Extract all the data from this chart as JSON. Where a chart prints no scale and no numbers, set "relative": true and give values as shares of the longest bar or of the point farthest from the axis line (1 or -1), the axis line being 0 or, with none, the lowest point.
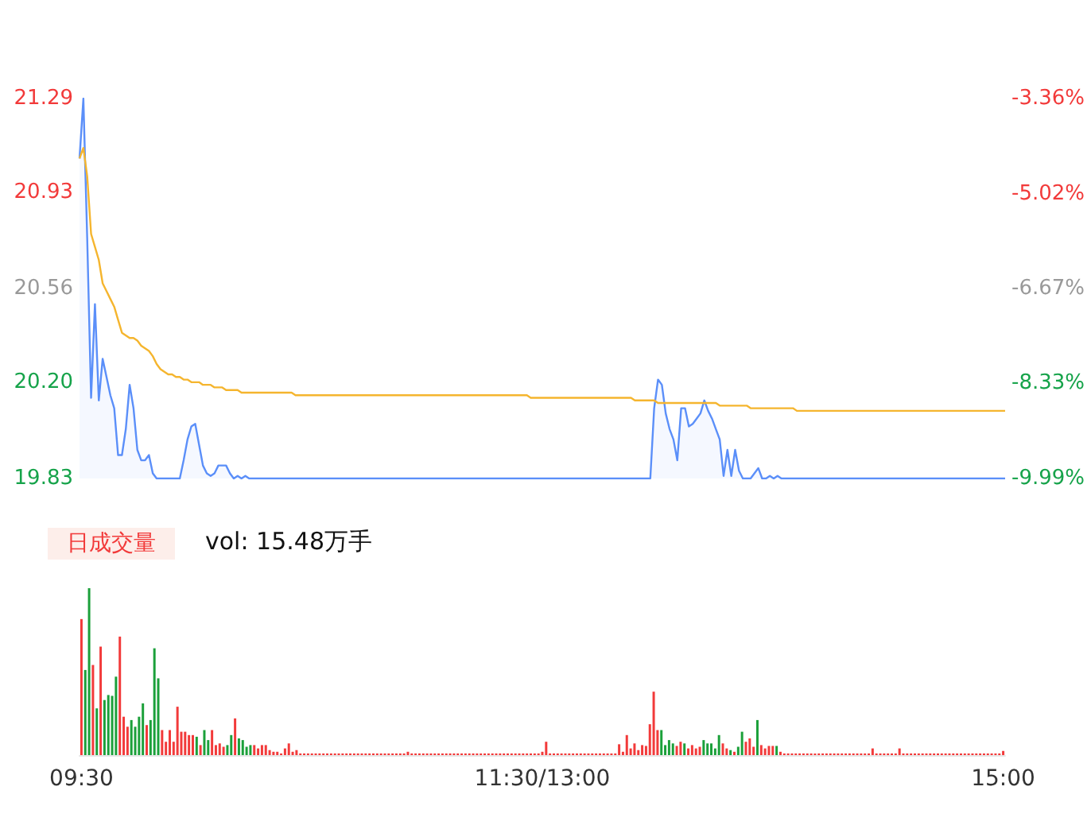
{
  "chart_data": [
    {
      "type": "line",
      "series": [
        {
          "type": "area",
          "color": "#5b8ff9",
          "values": [
            21.06,
            21.29,
            20.75,
            20.14,
            20.5,
            20.13,
            20.29,
            20.22,
            20.15,
            20.1,
            19.92,
            19.92,
            20.02,
            20.19,
            20.1,
            19.94,
            19.9,
            19.9,
            19.92,
            19.85,
            19.83,
            19.83,
            19.83,
            19.83,
            19.83,
            19.83,
            19.83,
            19.9,
            19.98,
            20.03,
            20.04,
            19.96,
            19.88,
            19.85,
            19.84,
            19.85,
            19.88,
            19.88,
            19.88,
            19.85,
            19.83,
            19.84,
            19.83,
            19.84,
            19.83,
            19.83,
            19.83,
            19.83,
            19.83,
            19.83,
            19.83,
            19.83,
            19.83,
            19.83,
            19.83,
            19.83,
            19.83,
            19.83,
            19.83,
            19.83,
            19.83,
            19.83,
            19.83,
            19.83,
            19.83,
            19.83,
            19.83,
            19.83,
            19.83,
            19.83,
            19.83,
            19.83,
            19.83,
            19.83,
            19.83,
            19.83,
            19.83,
            19.83,
            19.83,
            19.83,
            19.83,
            19.83,
            19.83,
            19.83,
            19.83,
            19.83,
            19.83,
            19.83,
            19.83,
            19.83,
            19.83,
            19.83,
            19.83,
            19.83,
            19.83,
            19.83,
            19.83,
            19.83,
            19.83,
            19.83,
            19.83,
            19.83,
            19.83,
            19.83,
            19.83,
            19.83,
            19.83,
            19.83,
            19.83,
            19.83,
            19.83,
            19.83,
            19.83,
            19.83,
            19.83,
            19.83,
            19.83,
            19.83,
            19.83,
            19.83,
            19.83,
            19.83,
            19.83,
            19.83,
            19.83,
            19.83,
            19.83,
            19.83,
            19.83,
            19.83,
            19.83,
            19.83,
            19.83,
            19.83,
            19.83,
            19.83,
            19.83,
            19.83,
            19.83,
            19.83,
            19.83,
            19.83,
            19.83,
            19.83,
            19.83,
            19.83,
            19.83,
            19.83,
            19.83,
            20.1,
            20.21,
            20.19,
            20.08,
            20.02,
            19.98,
            19.9,
            20.1,
            20.1,
            20.03,
            20.04,
            20.06,
            20.08,
            20.13,
            20.09,
            20.06,
            20.02,
            19.98,
            19.84,
            19.94,
            19.84,
            19.94,
            19.86,
            19.83,
            19.83,
            19.83,
            19.85,
            19.87,
            19.83,
            19.83,
            19.84,
            19.83,
            19.84,
            19.83,
            19.83,
            19.83,
            19.83,
            19.83,
            19.83,
            19.83,
            19.83,
            19.83,
            19.83,
            19.83,
            19.83,
            19.83,
            19.83,
            19.83,
            19.83,
            19.83,
            19.83,
            19.83,
            19.83,
            19.83,
            19.83,
            19.83,
            19.83,
            19.83,
            19.83,
            19.83,
            19.83,
            19.83,
            19.83,
            19.83,
            19.83,
            19.83,
            19.83,
            19.83,
            19.83,
            19.83,
            19.83,
            19.83,
            19.83,
            19.83,
            19.83,
            19.83,
            19.83,
            19.83,
            19.83,
            19.83,
            19.83,
            19.83,
            19.83,
            19.83,
            19.83,
            19.83,
            19.83,
            19.83,
            19.83,
            19.83,
            19.83,
            19.83
          ]
        },
        {
          "type": "line",
          "color": "#f5b52e",
          "values": [
            21.06,
            21.1,
            20.99,
            20.77,
            20.72,
            20.67,
            20.58,
            20.55,
            20.52,
            20.49,
            20.44,
            20.39,
            20.38,
            20.37,
            20.37,
            20.36,
            20.34,
            20.33,
            20.32,
            20.3,
            20.27,
            20.25,
            20.24,
            20.23,
            20.23,
            20.22,
            20.22,
            20.21,
            20.21,
            20.2,
            20.2,
            20.2,
            20.19,
            20.19,
            20.19,
            20.18,
            20.18,
            20.18,
            20.17,
            20.17,
            20.17,
            20.17,
            20.16,
            20.16,
            20.16,
            20.16,
            20.16,
            20.16,
            20.16,
            20.16,
            20.16,
            20.16,
            20.16,
            20.16,
            20.16,
            20.16,
            20.15,
            20.15,
            20.15,
            20.15,
            20.15,
            20.15,
            20.15,
            20.15,
            20.15,
            20.15,
            20.15,
            20.15,
            20.15,
            20.15,
            20.15,
            20.15,
            20.15,
            20.15,
            20.15,
            20.15,
            20.15,
            20.15,
            20.15,
            20.15,
            20.15,
            20.15,
            20.15,
            20.15,
            20.15,
            20.15,
            20.15,
            20.15,
            20.15,
            20.15,
            20.15,
            20.15,
            20.15,
            20.15,
            20.15,
            20.15,
            20.15,
            20.15,
            20.15,
            20.15,
            20.15,
            20.15,
            20.15,
            20.15,
            20.15,
            20.15,
            20.15,
            20.15,
            20.15,
            20.15,
            20.15,
            20.15,
            20.15,
            20.15,
            20.15,
            20.15,
            20.15,
            20.14,
            20.14,
            20.14,
            20.14,
            20.14,
            20.14,
            20.14,
            20.14,
            20.14,
            20.14,
            20.14,
            20.14,
            20.14,
            20.14,
            20.14,
            20.14,
            20.14,
            20.14,
            20.14,
            20.14,
            20.14,
            20.14,
            20.14,
            20.14,
            20.14,
            20.14,
            20.14,
            20.13,
            20.13,
            20.13,
            20.13,
            20.13,
            20.13,
            20.12,
            20.12,
            20.12,
            20.12,
            20.12,
            20.12,
            20.12,
            20.12,
            20.12,
            20.12,
            20.12,
            20.12,
            20.12,
            20.12,
            20.12,
            20.12,
            20.11,
            20.11,
            20.11,
            20.11,
            20.11,
            20.11,
            20.11,
            20.11,
            20.1,
            20.1,
            20.1,
            20.1,
            20.1,
            20.1,
            20.1,
            20.1,
            20.1,
            20.1,
            20.1,
            20.1,
            20.09,
            20.09,
            20.09,
            20.09,
            20.09,
            20.09,
            20.09,
            20.09,
            20.09,
            20.09,
            20.09,
            20.09,
            20.09,
            20.09,
            20.09,
            20.09,
            20.09,
            20.09,
            20.09,
            20.09,
            20.09,
            20.09,
            20.09,
            20.09,
            20.09,
            20.09,
            20.09,
            20.09,
            20.09,
            20.09,
            20.09,
            20.09,
            20.09,
            20.09,
            20.09,
            20.09,
            20.09,
            20.09,
            20.09,
            20.09,
            20.09,
            20.09,
            20.09,
            20.09,
            20.09,
            20.09,
            20.09,
            20.09,
            20.09,
            20.09,
            20.09,
            20.09,
            20.09,
            20.09,
            20.09
          ]
        }
      ],
      "ylim": [
        19.83,
        21.29
      ],
      "yticks": [
        {
          "value": 19.83,
          "label": "19.83"
        },
        {
          "value": 20.2,
          "label": "20.20"
        },
        {
          "value": 20.56,
          "label": "20.56"
        },
        {
          "value": 20.93,
          "label": "20.93"
        },
        {
          "value": 21.29,
          "label": "21.29"
        }
      ],
      "y2lim": [
        -9.99,
        -3.36
      ],
      "y2ticks": [
        {
          "value": -9.99,
          "label": "-9.99%"
        },
        {
          "value": -8.33,
          "label": "-8.33%"
        },
        {
          "value": -6.67,
          "label": "-6.67%"
        },
        {
          "value": -5.02,
          "label": "-5.02%"
        },
        {
          "value": -3.36,
          "label": "-3.36%"
        }
      ],
      "tick_labels": "y",
      "marker": "none"
    },
    {
      "type": "bar",
      "relative": true,
      "tick_labels": "x",
      "annotations": [
        "日成交量",
        "vol: 15.48万手"
      ],
      "categories": [
        "09:30",
        null,
        null,
        null,
        null,
        null,
        null,
        null,
        null,
        null,
        null,
        null,
        null,
        null,
        null,
        null,
        null,
        null,
        null,
        null,
        null,
        null,
        null,
        null,
        null,
        null,
        null,
        null,
        null,
        null,
        null,
        null,
        null,
        null,
        null,
        null,
        null,
        null,
        null,
        null,
        null,
        null,
        null,
        null,
        null,
        null,
        null,
        null,
        null,
        null,
        null,
        null,
        null,
        null,
        null,
        null,
        null,
        null,
        null,
        null,
        null,
        null,
        null,
        null,
        null,
        null,
        null,
        null,
        null,
        null,
        null,
        null,
        null,
        null,
        null,
        null,
        null,
        null,
        null,
        null,
        null,
        null,
        null,
        null,
        null,
        null,
        null,
        null,
        null,
        null,
        null,
        null,
        null,
        null,
        null,
        null,
        null,
        null,
        null,
        null,
        null,
        null,
        null,
        null,
        null,
        null,
        null,
        null,
        null,
        null,
        null,
        null,
        null,
        null,
        null,
        null,
        null,
        null,
        null,
        null,
        "11:30/13:00",
        null,
        null,
        null,
        null,
        null,
        null,
        null,
        null,
        null,
        null,
        null,
        null,
        null,
        null,
        null,
        null,
        null,
        null,
        null,
        null,
        null,
        null,
        null,
        null,
        null,
        null,
        null,
        null,
        null,
        null,
        null,
        null,
        null,
        null,
        null,
        null,
        null,
        null,
        null,
        null,
        null,
        null,
        null,
        null,
        null,
        null,
        null,
        null,
        null,
        null,
        null,
        null,
        null,
        null,
        null,
        null,
        null,
        null,
        null,
        null,
        null,
        null,
        null,
        null,
        null,
        null,
        null,
        null,
        null,
        null,
        null,
        null,
        null,
        null,
        null,
        null,
        null,
        null,
        null,
        null,
        null,
        null,
        null,
        null,
        null,
        null,
        null,
        null,
        null,
        null,
        null,
        null,
        null,
        null,
        null,
        null,
        null,
        null,
        null,
        null,
        null,
        null,
        null,
        null,
        null,
        null,
        null,
        null,
        null,
        null,
        null,
        null,
        null,
        null,
        null,
        null,
        null,
        null,
        null,
        "15:00"
      ],
      "values": [
        0.815,
        0.51,
        1,
        0.54,
        0.28,
        0.65,
        0.33,
        0.36,
        0.355,
        0.47,
        0.71,
        0.23,
        0.17,
        0.21,
        0.17,
        0.23,
        0.31,
        0.18,
        0.21,
        0.64,
        0.46,
        0.15,
        0.08,
        0.15,
        0.08,
        0.29,
        0.14,
        0.14,
        0.12,
        0.12,
        0.11,
        0.06,
        0.15,
        0.09,
        0.15,
        0.06,
        0.07,
        0.05,
        0.06,
        0.12,
        0.22,
        0.1,
        0.09,
        0.05,
        0.06,
        0.06,
        0.04,
        0.06,
        0.06,
        0.03,
        0.02,
        0.02,
        0.01,
        0.04,
        0.07,
        0.02,
        0.03,
        0.01,
        0.01,
        0.01,
        0.01,
        0.01,
        0.01,
        0.01,
        0.01,
        0.01,
        0.01,
        0.01,
        0.01,
        0.01,
        0.01,
        0.01,
        0.01,
        0.01,
        0.01,
        0.01,
        0.01,
        0.01,
        0.01,
        0.01,
        0.01,
        0.01,
        0.01,
        0.01,
        0.01,
        0.02,
        0.01,
        0.01,
        0.01,
        0.01,
        0.01,
        0.01,
        0.01,
        0.01,
        0.01,
        0.01,
        0.01,
        0.01,
        0.01,
        0.01,
        0.01,
        0.01,
        0.01,
        0.01,
        0.01,
        0.01,
        0.01,
        0.01,
        0.01,
        0.01,
        0.01,
        0.01,
        0.01,
        0.01,
        0.01,
        0.01,
        0.01,
        0.01,
        0.01,
        0.01,
        0.02,
        0.08,
        0.01,
        0.01,
        0.01,
        0.01,
        0.01,
        0.01,
        0.01,
        0.01,
        0.01,
        0.01,
        0.01,
        0.01,
        0.01,
        0.01,
        0.01,
        0.01,
        0.01,
        0.01,
        0.065,
        0.02,
        0.12,
        0.04,
        0.07,
        0.03,
        0.06,
        0.055,
        0.185,
        0.38,
        0.15,
        0.15,
        0.06,
        0.09,
        0.07,
        0.055,
        0.08,
        0.07,
        0.04,
        0.06,
        0.04,
        0.05,
        0.09,
        0.07,
        0.07,
        0.04,
        0.12,
        0.07,
        0.04,
        0.03,
        0.02,
        0.05,
        0.14,
        0.08,
        0.1,
        0.05,
        0.21,
        0.06,
        0.04,
        0.055,
        0.055,
        0.055,
        0.02,
        0.01,
        0.01,
        0.01,
        0.01,
        0.01,
        0.01,
        0.01,
        0.01,
        0.01,
        0.01,
        0.01,
        0.01,
        0.01,
        0.01,
        0.01,
        0.01,
        0.01,
        0.01,
        0.01,
        0.01,
        0.01,
        0.01,
        0.01,
        0.04,
        0.01,
        0.01,
        0.01,
        0.01,
        0.01,
        0.01,
        0.04,
        0.01,
        0.01,
        0.01,
        0.01,
        0.01,
        0.01,
        0.01,
        0.01,
        0.01,
        0.01,
        0.01,
        0.01,
        0.01,
        0.01,
        0.01,
        0.01,
        0.01,
        0.01,
        0.01,
        0.01,
        0.01,
        0.01,
        0.01,
        0.01,
        0.01,
        0.01,
        0.025
      ],
      "colors": [
        "#f23a3a",
        "#1ba03a",
        "#1ba03a",
        "#f23a3a",
        "#1ba03a",
        "#f23a3a",
        "#1ba03a",
        "#1ba03a",
        "#1ba03a",
        "#1ba03a",
        "#f23a3a",
        "#f23a3a",
        "#f23a3a",
        "#1ba03a",
        "#1ba03a",
        "#1ba03a",
        "#1ba03a",
        "#f23a3a",
        "#1ba03a",
        "#1ba03a",
        "#1ba03a",
        "#f23a3a",
        "#f23a3a",
        "#f23a3a",
        "#f23a3a",
        "#f23a3a",
        "#f23a3a",
        "#f23a3a",
        "#f23a3a",
        "#f23a3a",
        "#1ba03a",
        "#f23a3a",
        "#1ba03a",
        "#1ba03a",
        "#f23a3a",
        "#f23a3a",
        "#f23a3a",
        "#f23a3a",
        "#1ba03a",
        "#1ba03a",
        "#f23a3a",
        "#1ba03a",
        "#1ba03a",
        "#1ba03a",
        "#1ba03a",
        "#f23a3a",
        "#f23a3a",
        "#f23a3a",
        "#f23a3a",
        "#f23a3a",
        "#f23a3a",
        "#f23a3a",
        "#f23a3a",
        "#f23a3a",
        "#f23a3a",
        "#f23a3a",
        "#f23a3a",
        "#f23a3a",
        "#f23a3a",
        "#f23a3a",
        "#f23a3a",
        "#f23a3a",
        "#f23a3a",
        "#f23a3a",
        "#f23a3a",
        "#f23a3a",
        "#f23a3a",
        "#f23a3a",
        "#f23a3a",
        "#f23a3a",
        "#f23a3a",
        "#f23a3a",
        "#f23a3a",
        "#f23a3a",
        "#f23a3a",
        "#f23a3a",
        "#f23a3a",
        "#f23a3a",
        "#f23a3a",
        "#f23a3a",
        "#f23a3a",
        "#f23a3a",
        "#f23a3a",
        "#f23a3a",
        "#f23a3a",
        "#f23a3a",
        "#f23a3a",
        "#f23a3a",
        "#f23a3a",
        "#f23a3a",
        "#f23a3a",
        "#f23a3a",
        "#f23a3a",
        "#f23a3a",
        "#f23a3a",
        "#f23a3a",
        "#f23a3a",
        "#f23a3a",
        "#f23a3a",
        "#f23a3a",
        "#f23a3a",
        "#f23a3a",
        "#f23a3a",
        "#f23a3a",
        "#f23a3a",
        "#f23a3a",
        "#f23a3a",
        "#f23a3a",
        "#f23a3a",
        "#f23a3a",
        "#f23a3a",
        "#f23a3a",
        "#f23a3a",
        "#f23a3a",
        "#f23a3a",
        "#f23a3a",
        "#f23a3a",
        "#f23a3a",
        "#f23a3a",
        "#f23a3a",
        "#f23a3a",
        "#f23a3a",
        "#f23a3a",
        "#f23a3a",
        "#f23a3a",
        "#f23a3a",
        "#f23a3a",
        "#f23a3a",
        "#f23a3a",
        "#f23a3a",
        "#f23a3a",
        "#f23a3a",
        "#f23a3a",
        "#f23a3a",
        "#f23a3a",
        "#f23a3a",
        "#f23a3a",
        "#f23a3a",
        "#f23a3a",
        "#f23a3a",
        "#f23a3a",
        "#f23a3a",
        "#f23a3a",
        "#f23a3a",
        "#f23a3a",
        "#f23a3a",
        "#f23a3a",
        "#f23a3a",
        "#f23a3a",
        "#f23a3a",
        "#f23a3a",
        "#1ba03a",
        "#1ba03a",
        "#1ba03a",
        "#1ba03a",
        "#f23a3a",
        "#f23a3a",
        "#1ba03a",
        "#f23a3a",
        "#f23a3a",
        "#f23a3a",
        "#f23a3a",
        "#1ba03a",
        "#1ba03a",
        "#1ba03a",
        "#1ba03a",
        "#1ba03a",
        "#f23a3a",
        "#f23a3a",
        "#1ba03a",
        "#f23a3a",
        "#1ba03a",
        "#1ba03a",
        "#f23a3a",
        "#f23a3a",
        "#f23a3a",
        "#1ba03a",
        "#f23a3a",
        "#f23a3a",
        "#f23a3a",
        "#f23a3a",
        "#1ba03a",
        "#f23a3a",
        "#f23a3a",
        "#f23a3a",
        "#f23a3a",
        "#f23a3a",
        "#f23a3a",
        "#f23a3a",
        "#f23a3a",
        "#f23a3a",
        "#f23a3a",
        "#f23a3a",
        "#f23a3a",
        "#f23a3a",
        "#f23a3a",
        "#f23a3a",
        "#f23a3a",
        "#f23a3a",
        "#f23a3a",
        "#f23a3a",
        "#f23a3a",
        "#f23a3a",
        "#f23a3a",
        "#f23a3a",
        "#f23a3a",
        "#f23a3a",
        "#f23a3a",
        "#f23a3a",
        "#f23a3a",
        "#f23a3a",
        "#f23a3a",
        "#f23a3a",
        "#f23a3a",
        "#f23a3a",
        "#f23a3a",
        "#f23a3a",
        "#f23a3a",
        "#f23a3a",
        "#f23a3a",
        "#f23a3a",
        "#f23a3a",
        "#f23a3a",
        "#f23a3a",
        "#f23a3a",
        "#f23a3a",
        "#f23a3a",
        "#f23a3a",
        "#f23a3a",
        "#f23a3a",
        "#f23a3a",
        "#f23a3a",
        "#f23a3a",
        "#f23a3a",
        "#f23a3a",
        "#f23a3a",
        "#f23a3a",
        "#f23a3a",
        "#f23a3a",
        "#f23a3a",
        "#f23a3a"
      ]
    }
  ]
}
